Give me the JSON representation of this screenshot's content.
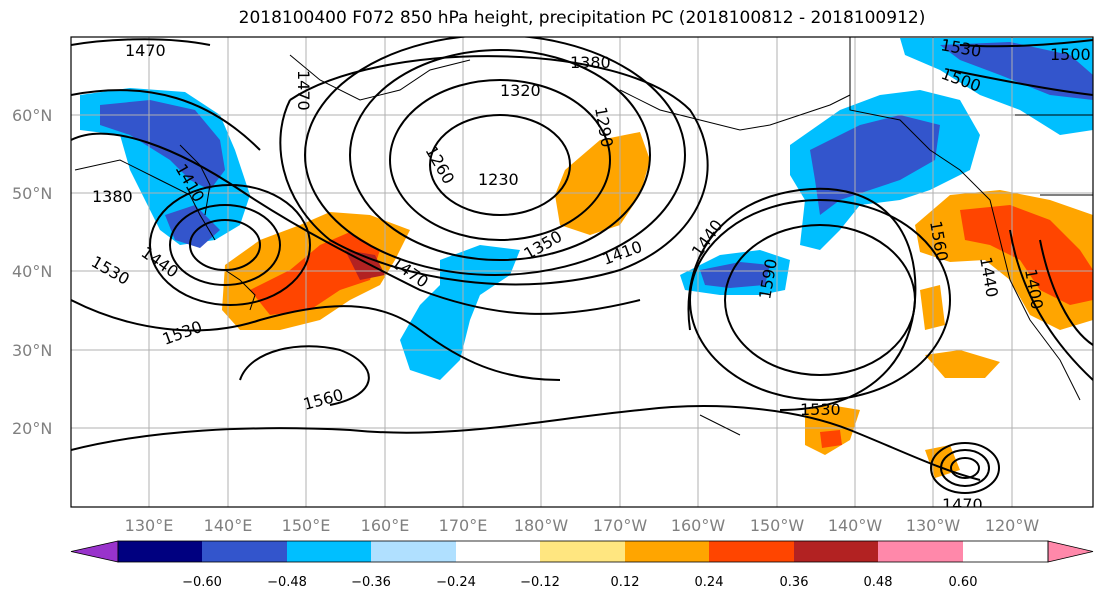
{
  "title": "2018100400 F072 850 hPa height, precipitation PC (2018100812 - 2018100912)",
  "map": {
    "lon_labels": [
      "130°E",
      "140°E",
      "150°E",
      "160°E",
      "170°E",
      "180°W",
      "170°W",
      "160°W",
      "150°W",
      "140°W",
      "130°W",
      "120°W"
    ],
    "lat_labels": [
      "60°N",
      "50°N",
      "40°N",
      "30°N",
      "20°N"
    ],
    "contour_labels": [
      "1470",
      "1470",
      "1380",
      "1320",
      "1290",
      "1260",
      "1230",
      "1380",
      "1410",
      "1440",
      "1500",
      "1530",
      "1350",
      "1410",
      "1470",
      "1440",
      "1590",
      "1560",
      "1440",
      "1530",
      "1560",
      "1530",
      "1470",
      "1530",
      "1500",
      "1400"
    ],
    "grid": true
  },
  "colorbar": {
    "tick_labels": [
      "−0.60",
      "−0.48",
      "−0.36",
      "−0.24",
      "−0.12",
      "0.12",
      "0.24",
      "0.36",
      "0.48",
      "0.60"
    ],
    "colors": [
      "#9933cc",
      "#000080",
      "#3355cc",
      "#00bfff",
      "#b0e0ff",
      "#ffffff",
      "#ffe680",
      "#ffa500",
      "#ff4500",
      "#b22222",
      "#ff88aa"
    ]
  }
}
